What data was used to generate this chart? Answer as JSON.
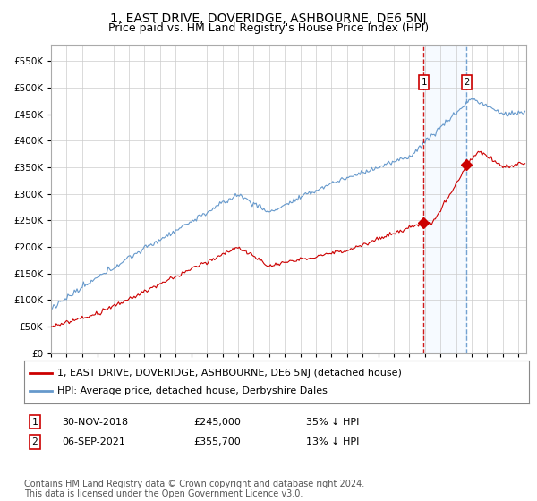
{
  "title": "1, EAST DRIVE, DOVERIDGE, ASHBOURNE, DE6 5NJ",
  "subtitle": "Price paid vs. HM Land Registry's House Price Index (HPI)",
  "yticks": [
    0,
    50000,
    100000,
    150000,
    200000,
    250000,
    300000,
    350000,
    400000,
    450000,
    500000,
    550000
  ],
  "xlim_start": 1995.0,
  "xlim_end": 2025.5,
  "ylim": [
    0,
    580000
  ],
  "sale1_date": "30-NOV-2018",
  "sale1_price": 245000,
  "sale1_pct": "35%",
  "sale1_x": 2018.92,
  "sale2_date": "06-SEP-2021",
  "sale2_price": 355700,
  "sale2_pct": "13%",
  "sale2_x": 2021.67,
  "legend_label_red": "1, EAST DRIVE, DOVERIDGE, ASHBOURNE, DE6 5NJ (detached house)",
  "legend_label_blue": "HPI: Average price, detached house, Derbyshire Dales",
  "footnote": "Contains HM Land Registry data © Crown copyright and database right 2024.\nThis data is licensed under the Open Government Licence v3.0.",
  "red_color": "#cc0000",
  "blue_color": "#6699cc",
  "vline1_color": "#cc0000",
  "vline2_color": "#6699cc",
  "shade_color": "#ddeeff",
  "background_color": "#ffffff",
  "grid_color": "#cccccc",
  "title_fontsize": 10,
  "subtitle_fontsize": 9,
  "tick_fontsize": 7.5,
  "legend_fontsize": 8,
  "footnote_fontsize": 7
}
